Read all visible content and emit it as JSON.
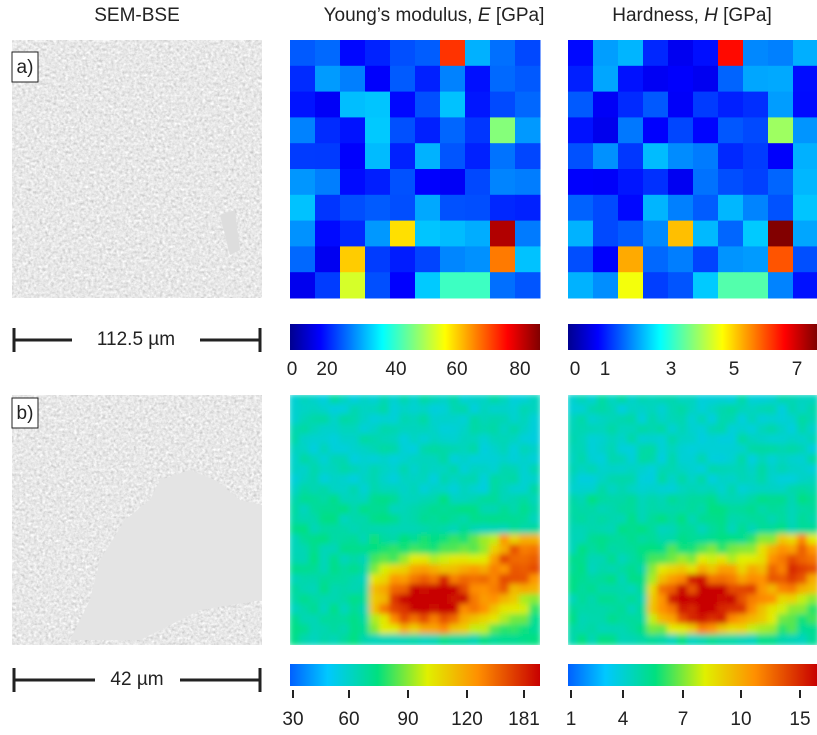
{
  "header": {
    "col1": "SEM-BSE",
    "col2": {
      "prefix": "Young’s modulus, ",
      "symbol": "E",
      "unit": "[GPa]"
    },
    "col3": {
      "prefix": "Hardness, ",
      "symbol": "H",
      "unit": "[GPa]"
    }
  },
  "panels": [
    {
      "label": "a)",
      "scale_bar": "112.5 µm",
      "modulus_ticks": [
        0,
        20,
        40,
        60,
        80
      ],
      "hardness_ticks": [
        0,
        1,
        3,
        5,
        7
      ]
    },
    {
      "label": "b)",
      "scale_bar": "42 µm",
      "modulus_ticks": [
        30,
        60,
        90,
        120,
        181
      ],
      "hardness_ticks": [
        1,
        4,
        7,
        10,
        15
      ]
    }
  ]
}
